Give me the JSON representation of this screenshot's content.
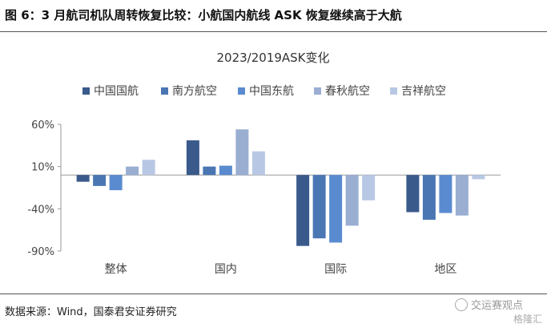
{
  "header": {
    "title": "图 6：3 月航司机队周转恢复比较：小航国内航线 ASK 恢复继续高于大航"
  },
  "footer": {
    "source": "数据来源：Wind，国泰君安证券研究",
    "watermark": "交运赛观点",
    "watermark2": "格隆汇"
  },
  "chart_data": {
    "type": "bar",
    "title": "2023/2019ASK变化",
    "categories": [
      "整体",
      "国内",
      "国际",
      "地区"
    ],
    "series": [
      {
        "name": "中国国航",
        "color": "#3a5a8c",
        "values": [
          -8,
          41,
          -84,
          -44
        ]
      },
      {
        "name": "南方航空",
        "color": "#4a77b4",
        "values": [
          -13,
          10,
          -75,
          -53
        ]
      },
      {
        "name": "中国东航",
        "color": "#5a8bd0",
        "values": [
          -18,
          11,
          -80,
          -45
        ]
      },
      {
        "name": "春秋航空",
        "color": "#9aaed2",
        "values": [
          10,
          54,
          -60,
          -48
        ]
      },
      {
        "name": "吉祥航空",
        "color": "#b8c8e4",
        "values": [
          18,
          28,
          -30,
          -5
        ]
      }
    ],
    "yticks": [
      "60%",
      "10%",
      "-40%",
      "-90%"
    ],
    "ytick_values": [
      60,
      10,
      -40,
      -90
    ],
    "ylim": [
      -90,
      60
    ],
    "grid": false,
    "legend": "top"
  }
}
